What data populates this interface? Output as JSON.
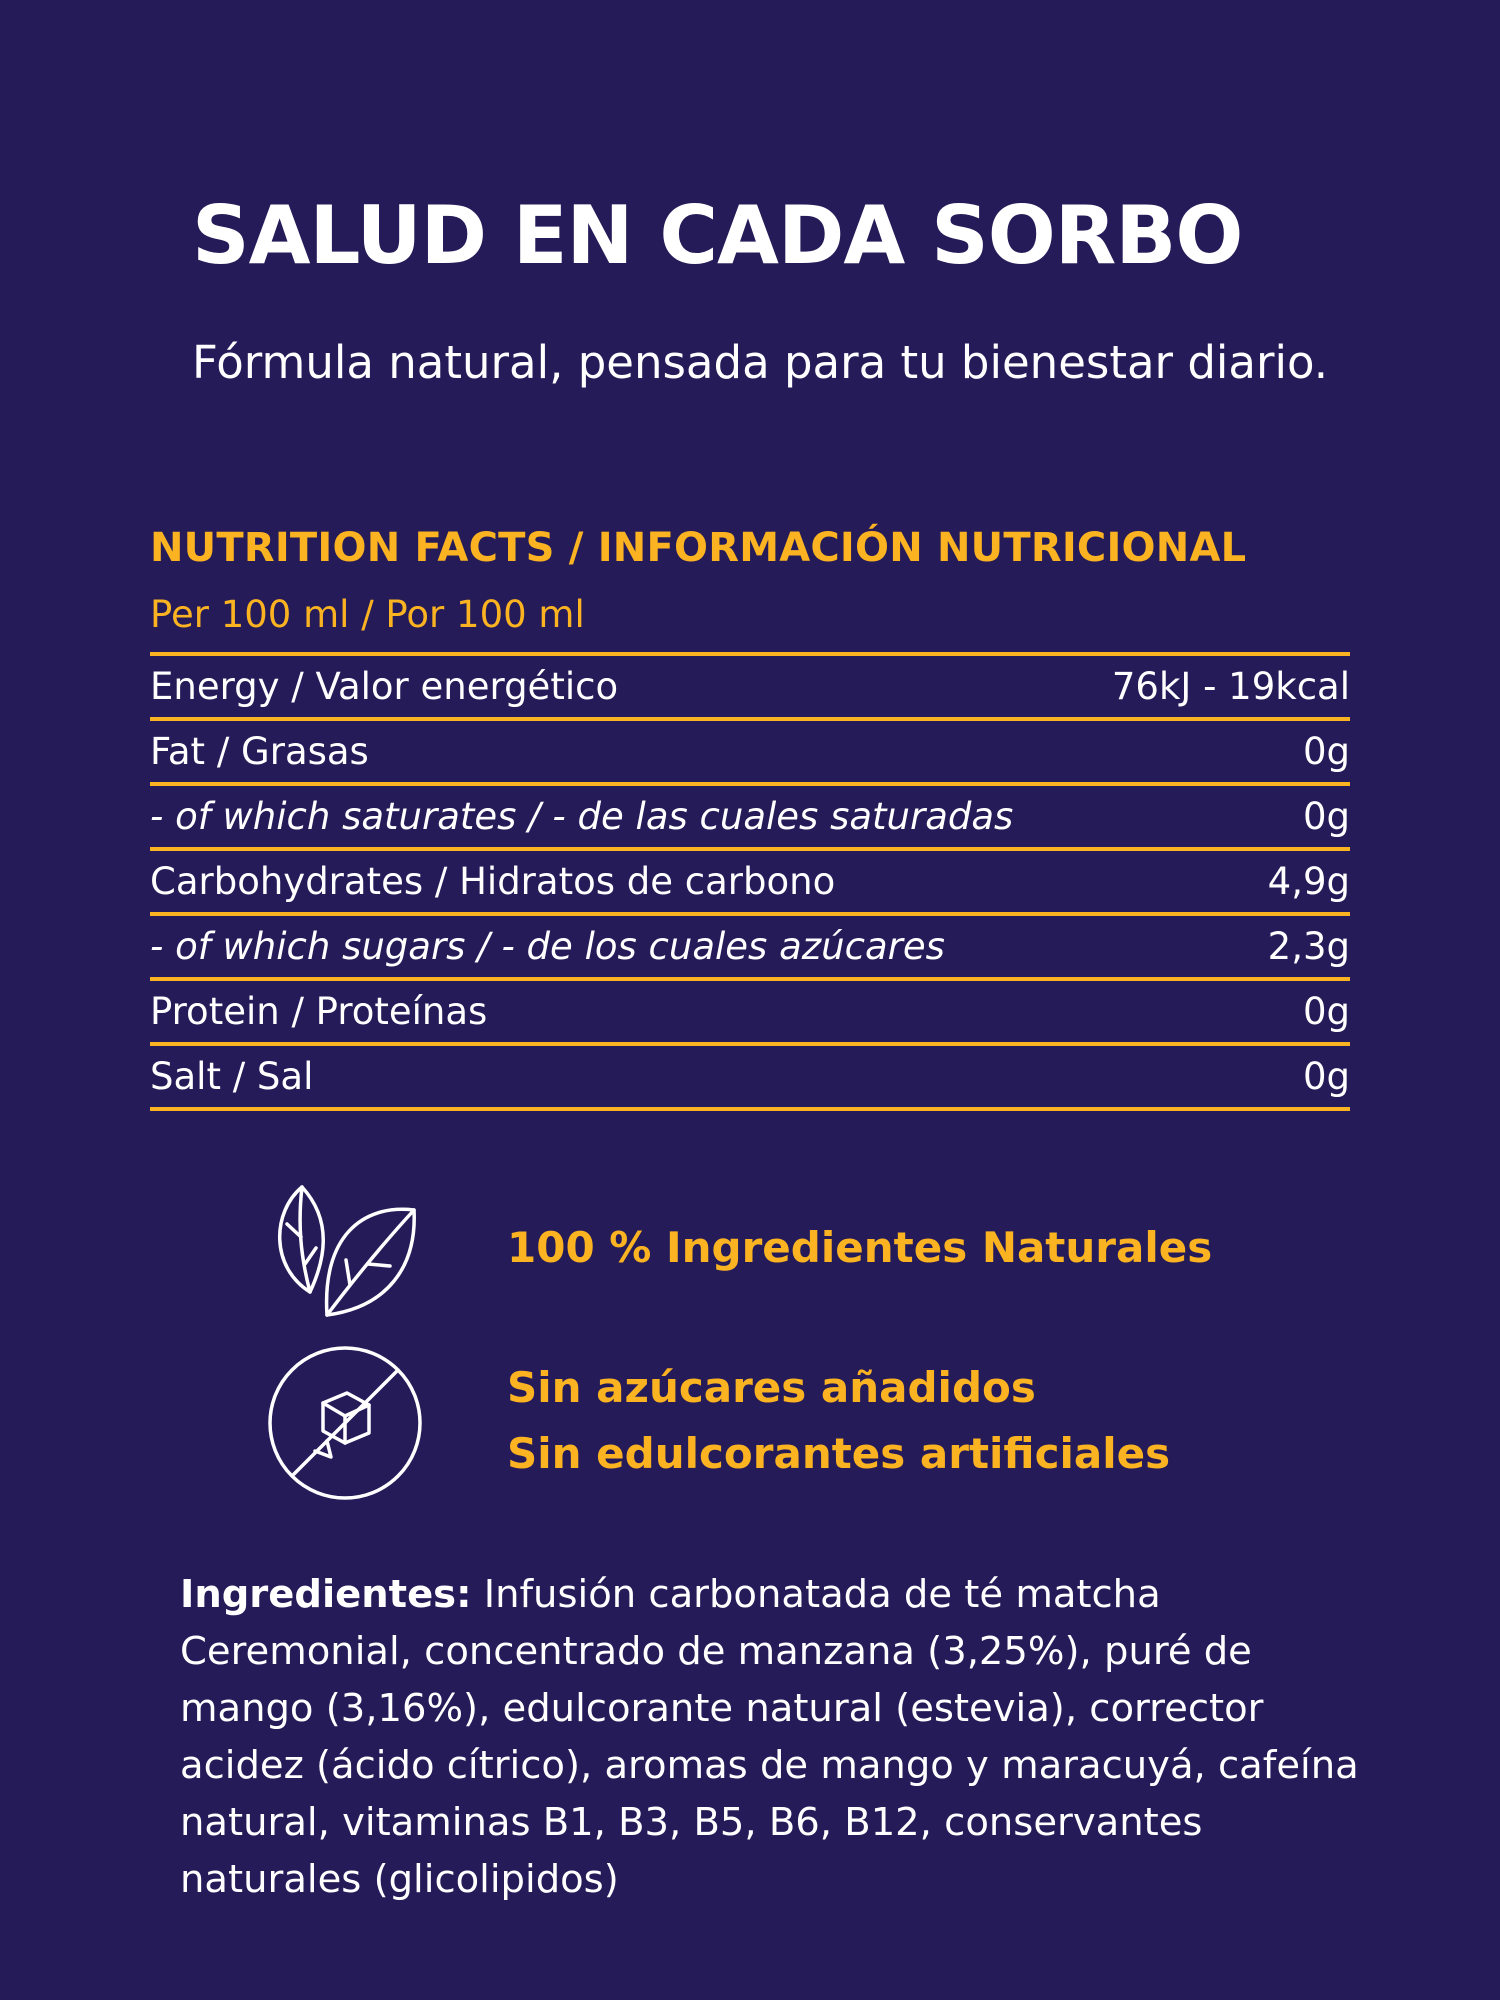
{
  "headline": "SALUD EN CADA SORBO",
  "subheadline": "Fórmula natural, pensada para tu bienestar diario.",
  "nutrition": {
    "title": "NUTRITION FACTS / INFORMACIÓN NUTRICIONAL",
    "per": "Per 100 ml / Por 100 ml",
    "rows": [
      {
        "label": "Energy / Valor energético",
        "value": "76kJ - 19kcal"
      },
      {
        "label": "Fat / Grasas",
        "value": "0g"
      },
      {
        "label": "- of which saturates / - de las cuales saturadas",
        "value": "0g"
      },
      {
        "label": "Carbohydrates / Hidratos de carbono",
        "value": "4,9g"
      },
      {
        "label": "- of which sugars / - de los cuales azúcares",
        "value": "2,3g"
      },
      {
        "label": "Protein / Proteínas",
        "value": "0g"
      },
      {
        "label": "Salt / Sal",
        "value": "0g"
      }
    ]
  },
  "claims": {
    "natural": {
      "icon": "leaves-icon",
      "text": "100 % Ingredientes Naturales"
    },
    "no_sugar": {
      "icon": "no-sugar-icon",
      "line1": "Sin azúcares añadidos",
      "line2": "Sin edulcorantes artificiales"
    }
  },
  "ingredients": {
    "label": "Ingredientes:",
    "text": " Infusión carbonatada de té matcha Ceremonial, concentrado de manzana (3,25%), puré de mango (3,16%), edulcorante natural (estevia), corrector acidez (ácido cítrico), aromas de mango y maracuyá, cafeína natural, vitaminas B1, B3, B5, B6, B12, conservantes naturales (glicolipidos)"
  },
  "colors": {
    "background": "#241b58",
    "accent": "#fbb321",
    "text": "#ffffff"
  }
}
